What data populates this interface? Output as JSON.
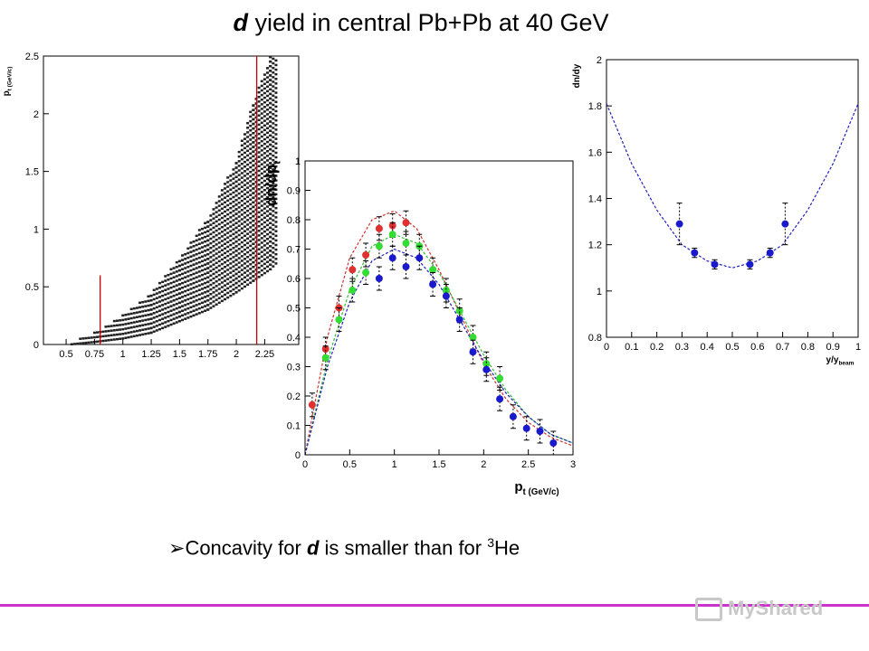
{
  "slide": {
    "title_particle": "d",
    "title_rest": " yield in central Pb+Pb at 40 GeV",
    "bullet_marker": "➢",
    "bullet_pre": "Concavity for ",
    "bullet_particle": "d",
    "bullet_mid": " is smaller than for ",
    "bullet_sup": "3",
    "bullet_post": "He",
    "watermark": "MyShared",
    "accent_line_color": "#cc33cc"
  },
  "chart_data": [
    {
      "type": "heatmap",
      "ylabel": "p_t (GeV/c)",
      "xlim": [
        0.3,
        2.55
      ],
      "ylim": [
        0,
        2.5
      ],
      "xticks": [
        "0.5",
        "0.75",
        "1",
        "1.25",
        "1.5",
        "1.75",
        "2",
        "2.25"
      ],
      "yticks": [
        "0",
        "0.5",
        "1",
        "1.5",
        "2",
        "2.5"
      ],
      "acceptance_band": [
        [
          0.55,
          0.0,
          0.02
        ],
        [
          0.75,
          0.02,
          0.1
        ],
        [
          1.0,
          0.05,
          0.25
        ],
        [
          1.25,
          0.1,
          0.45
        ],
        [
          1.5,
          0.2,
          0.75
        ],
        [
          1.75,
          0.3,
          1.1
        ],
        [
          2.0,
          0.45,
          1.6
        ],
        [
          2.15,
          0.55,
          2.1
        ],
        [
          2.3,
          0.65,
          2.5
        ],
        [
          2.35,
          0.7,
          2.5
        ]
      ],
      "red_lines_x": [
        0.8,
        2.18
      ]
    },
    {
      "type": "scatter",
      "xlabel": "p_t (GeV/c)",
      "ylabel": "dn/dp_t",
      "xlim": [
        0,
        3
      ],
      "ylim": [
        0,
        1
      ],
      "xticks": [
        "0",
        "0.5",
        "1",
        "1.5",
        "2",
        "2.5",
        "3"
      ],
      "yticks": [
        "0",
        "0.1",
        "0.2",
        "0.3",
        "0.4",
        "0.5",
        "0.6",
        "0.7",
        "0.8",
        "0.9",
        "1"
      ],
      "series": [
        {
          "color": "#e03030",
          "x": [
            0.08,
            0.23,
            0.38,
            0.53,
            0.68,
            0.83,
            0.98,
            1.13
          ],
          "y": [
            0.17,
            0.36,
            0.5,
            0.63,
            0.68,
            0.77,
            0.78,
            0.79
          ],
          "err": 0.04
        },
        {
          "color": "#33dd33",
          "x": [
            0.23,
            0.38,
            0.53,
            0.68,
            0.83,
            0.98,
            1.13,
            1.28,
            1.43,
            1.58,
            1.73,
            1.88,
            2.03,
            2.18
          ],
          "y": [
            0.33,
            0.46,
            0.56,
            0.62,
            0.71,
            0.75,
            0.72,
            0.71,
            0.63,
            0.56,
            0.49,
            0.4,
            0.31,
            0.26
          ],
          "err": 0.04
        },
        {
          "color": "#1a1acc",
          "x": [
            0.83,
            0.98,
            1.13,
            1.28,
            1.43,
            1.58,
            1.73,
            1.88,
            2.03,
            2.18,
            2.33,
            2.48,
            2.63,
            2.78
          ],
          "y": [
            0.6,
            0.67,
            0.64,
            0.67,
            0.58,
            0.54,
            0.46,
            0.35,
            0.29,
            0.19,
            0.13,
            0.09,
            0.08,
            0.04
          ],
          "err": 0.04
        }
      ],
      "fits": [
        {
          "color": "#d03030",
          "x": [
            0,
            0.25,
            0.5,
            0.75,
            1.0,
            1.25,
            1.5,
            1.75,
            2.0,
            2.25,
            2.5,
            2.75,
            3.0
          ],
          "y": [
            0.0,
            0.4,
            0.67,
            0.8,
            0.83,
            0.77,
            0.63,
            0.47,
            0.31,
            0.19,
            0.11,
            0.06,
            0.03
          ]
        },
        {
          "color": "#30c030",
          "x": [
            0,
            0.25,
            0.5,
            0.75,
            1.0,
            1.25,
            1.5,
            1.75,
            2.0,
            2.25,
            2.5,
            2.75,
            3.0
          ],
          "y": [
            0.0,
            0.32,
            0.56,
            0.71,
            0.75,
            0.72,
            0.62,
            0.48,
            0.34,
            0.22,
            0.13,
            0.07,
            0.04
          ]
        },
        {
          "color": "#2020c0",
          "x": [
            0,
            0.25,
            0.5,
            0.75,
            1.0,
            1.25,
            1.5,
            1.75,
            2.0,
            2.25,
            2.5,
            2.75,
            3.0
          ],
          "y": [
            0.0,
            0.3,
            0.52,
            0.66,
            0.7,
            0.67,
            0.58,
            0.45,
            0.32,
            0.21,
            0.13,
            0.07,
            0.04
          ]
        }
      ]
    },
    {
      "type": "scatter",
      "xlabel": "y/y_beam",
      "ylabel": "dn/dy",
      "xlim": [
        0,
        1
      ],
      "ylim": [
        0.8,
        2
      ],
      "xticks": [
        "0",
        "0.1",
        "0.2",
        "0.3",
        "0.4",
        "0.5",
        "0.6",
        "0.7",
        "0.8",
        "0.9",
        "1"
      ],
      "yticks": [
        "0.8",
        "1",
        "1.2",
        "1.4",
        "1.6",
        "1.8",
        "2"
      ],
      "series": [
        {
          "color": "#1a1acc",
          "x": [
            0.29,
            0.35,
            0.43,
            0.57,
            0.65,
            0.71
          ],
          "y": [
            1.29,
            1.165,
            1.115,
            1.115,
            1.165,
            1.29
          ],
          "err": [
            0.09,
            0.02,
            0.02,
            0.02,
            0.02,
            0.09
          ]
        }
      ],
      "fits": [
        {
          "color": "#2020c0",
          "x": [
            0,
            0.1,
            0.2,
            0.3,
            0.4,
            0.5,
            0.6,
            0.7,
            0.8,
            0.9,
            1.0
          ],
          "y": [
            1.81,
            1.55,
            1.35,
            1.2,
            1.13,
            1.1,
            1.13,
            1.2,
            1.35,
            1.55,
            1.81
          ]
        }
      ]
    }
  ]
}
